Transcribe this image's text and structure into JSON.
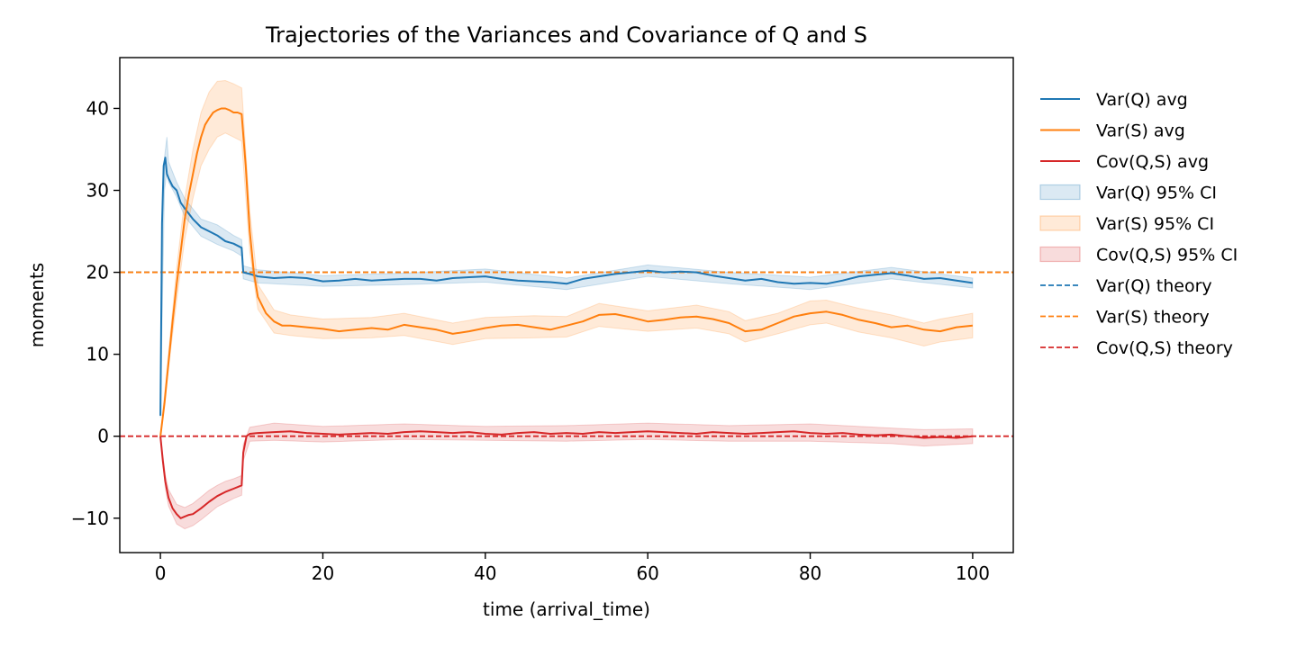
{
  "chart_data": {
    "type": "line",
    "title": "Trajectories of the Variances and Covariance of Q and S",
    "xlabel": "time (arrival_time)",
    "ylabel": "moments",
    "xlim": [
      -5,
      105
    ],
    "ylim": [
      -14.2,
      46.2
    ],
    "xticks": [
      0,
      20,
      40,
      60,
      80,
      100
    ],
    "yticks": [
      -10,
      0,
      10,
      20,
      30,
      40
    ],
    "legend_position": "outside-right",
    "series": [
      {
        "name": "Var(Q) avg",
        "color": "#1f77b4",
        "x": [
          0,
          0.2,
          0.4,
          0.6,
          0.8,
          1,
          1.5,
          2,
          2.5,
          3,
          4,
          5,
          6,
          7,
          8,
          9,
          10,
          10.2,
          11,
          12,
          14,
          16,
          18,
          20,
          22,
          24,
          26,
          28,
          30,
          32,
          34,
          36,
          38,
          40,
          42,
          44,
          46,
          48,
          50,
          52,
          54,
          56,
          58,
          60,
          62,
          64,
          66,
          68,
          70,
          72,
          74,
          76,
          78,
          80,
          82,
          84,
          86,
          88,
          90,
          92,
          94,
          96,
          98,
          100
        ],
        "y": [
          2.5,
          26,
          33,
          34,
          32,
          31.5,
          30.5,
          30,
          28.5,
          27.8,
          26.5,
          25.5,
          25,
          24.5,
          23.8,
          23.5,
          23,
          20,
          19.8,
          19.5,
          19.3,
          19.4,
          19.3,
          18.9,
          19,
          19.2,
          19,
          19.1,
          19.2,
          19.2,
          19,
          19.3,
          19.4,
          19.5,
          19.2,
          19,
          18.9,
          18.8,
          18.6,
          19.2,
          19.5,
          19.8,
          20,
          20.2,
          20,
          20.1,
          20,
          19.6,
          19.3,
          19,
          19.2,
          18.8,
          18.6,
          18.7,
          18.6,
          19,
          19.5,
          19.7,
          19.9,
          19.6,
          19.2,
          19.3,
          19,
          18.7
        ]
      },
      {
        "name": "Var(S) avg",
        "color": "#ff7f0e",
        "x": [
          0,
          0.5,
          1,
          1.5,
          2,
          2.5,
          3,
          3.5,
          4,
          4.5,
          5,
          5.5,
          6,
          6.5,
          7,
          7.5,
          8,
          8.5,
          9,
          9.5,
          10,
          10.5,
          11,
          11.5,
          12,
          13,
          14,
          15,
          16,
          18,
          20,
          22,
          24,
          26,
          28,
          30,
          32,
          34,
          36,
          38,
          40,
          42,
          44,
          46,
          48,
          50,
          52,
          54,
          56,
          58,
          60,
          62,
          64,
          66,
          68,
          70,
          72,
          74,
          76,
          78,
          80,
          82,
          84,
          86,
          88,
          90,
          92,
          94,
          96,
          98,
          100
        ],
        "y": [
          0,
          4,
          9,
          14,
          18.5,
          22.5,
          26.5,
          29.5,
          32,
          34.5,
          36.5,
          38,
          38.8,
          39.5,
          39.8,
          40,
          40,
          39.8,
          39.5,
          39.5,
          39.3,
          33,
          25,
          20,
          17,
          15,
          14,
          13.5,
          13.5,
          13.3,
          13.1,
          12.8,
          13,
          13.2,
          13,
          13.6,
          13.3,
          13,
          12.5,
          12.8,
          13.2,
          13.5,
          13.6,
          13.3,
          13,
          13.5,
          14,
          14.8,
          14.9,
          14.5,
          14,
          14.2,
          14.5,
          14.6,
          14.3,
          13.8,
          12.8,
          13,
          13.8,
          14.6,
          15,
          15.2,
          14.8,
          14.2,
          13.8,
          13.3,
          13.5,
          13,
          12.8,
          13.3,
          13.5
        ]
      },
      {
        "name": "Cov(Q,S) avg",
        "color": "#d62728",
        "x": [
          0,
          0.3,
          0.6,
          1,
          1.5,
          2,
          2.5,
          3,
          3.5,
          4,
          5,
          6,
          7,
          8,
          9,
          10,
          10.2,
          10.6,
          11,
          12,
          14,
          16,
          18,
          20,
          22,
          24,
          26,
          28,
          30,
          32,
          34,
          36,
          38,
          40,
          42,
          44,
          46,
          48,
          50,
          52,
          54,
          56,
          58,
          60,
          62,
          64,
          66,
          68,
          70,
          72,
          74,
          76,
          78,
          80,
          82,
          84,
          86,
          88,
          90,
          92,
          94,
          96,
          98,
          100
        ],
        "y": [
          0,
          -3,
          -5.5,
          -7.5,
          -8.8,
          -9.5,
          -10,
          -9.8,
          -9.6,
          -9.5,
          -8.8,
          -8,
          -7.3,
          -6.8,
          -6.4,
          -6,
          -2,
          0,
          0.3,
          0.4,
          0.5,
          0.6,
          0.4,
          0.3,
          0.2,
          0.3,
          0.4,
          0.3,
          0.5,
          0.6,
          0.5,
          0.4,
          0.5,
          0.3,
          0.2,
          0.4,
          0.5,
          0.3,
          0.4,
          0.3,
          0.5,
          0.4,
          0.5,
          0.6,
          0.5,
          0.4,
          0.3,
          0.5,
          0.4,
          0.3,
          0.4,
          0.5,
          0.6,
          0.4,
          0.3,
          0.4,
          0.2,
          0.1,
          0.2,
          0,
          -0.2,
          -0.1,
          -0.2,
          0
        ]
      }
    ],
    "confidence_bands": [
      {
        "name": "Var(Q) 95% CI",
        "color": "#1f77b4",
        "x": [
          0,
          0.5,
          0.8,
          1,
          2,
          3,
          5,
          7,
          9,
          10,
          10.2,
          12,
          20,
          30,
          40,
          50,
          60,
          70,
          80,
          90,
          100
        ],
        "lower": [
          2.3,
          30,
          32.3,
          31,
          29.2,
          26.8,
          24.4,
          23.4,
          22.6,
          22,
          19.2,
          18.7,
          18.3,
          18.5,
          18.8,
          17.9,
          19.5,
          18.6,
          17.9,
          19.2,
          18.1
        ],
        "upper": [
          2.7,
          34,
          36.5,
          33.5,
          31,
          29,
          26.5,
          25.8,
          24.5,
          24,
          20.8,
          20.3,
          19.6,
          19.9,
          20.4,
          19.3,
          20.9,
          20,
          19.4,
          20.6,
          19.3
        ]
      },
      {
        "name": "Var(S) 95% CI",
        "color": "#ff7f0e",
        "x": [
          0,
          2,
          3,
          4,
          5,
          6,
          7,
          8,
          9,
          10,
          11,
          12,
          14,
          16,
          20,
          26,
          30,
          36,
          40,
          46,
          50,
          54,
          60,
          66,
          70,
          72,
          76,
          80,
          82,
          86,
          90,
          94,
          96,
          100
        ],
        "lower": [
          0,
          16.5,
          24,
          29,
          33,
          35,
          36.5,
          37,
          36.5,
          36,
          22.5,
          15.5,
          12.6,
          12.3,
          11.9,
          12,
          12.3,
          11.2,
          11.9,
          12,
          12.1,
          13.4,
          12.8,
          13.2,
          12.5,
          11.5,
          12.5,
          13.6,
          13.8,
          12.7,
          12,
          11,
          11.5,
          12
        ],
        "upper": [
          0,
          20.5,
          29,
          35,
          39.5,
          42,
          43.3,
          43.4,
          43,
          42.5,
          27.5,
          18.5,
          15.4,
          14.8,
          14.3,
          14.5,
          15,
          13.8,
          14.5,
          14.7,
          14.6,
          16.2,
          15.3,
          16,
          15.2,
          14.1,
          15,
          16.5,
          16.6,
          15.6,
          14.8,
          13.8,
          14.3,
          15
        ]
      },
      {
        "name": "Cov(Q,S) 95% CI",
        "color": "#d62728",
        "x": [
          0,
          0.6,
          1,
          2,
          3,
          4,
          5,
          6,
          7,
          8,
          9,
          10,
          10.2,
          11,
          14,
          20,
          30,
          40,
          50,
          60,
          70,
          80,
          90,
          94,
          100
        ],
        "lower": [
          0,
          -6.3,
          -8.5,
          -10.7,
          -11.3,
          -10.9,
          -10.2,
          -9.4,
          -8.6,
          -8.1,
          -7.6,
          -7.2,
          -3,
          -0.6,
          -0.5,
          -0.7,
          -0.4,
          -0.5,
          -0.6,
          -0.4,
          -0.6,
          -0.6,
          -0.9,
          -1.2,
          -0.9
        ],
        "upper": [
          0,
          -4.7,
          -6.5,
          -8.3,
          -8.7,
          -8.2,
          -7.4,
          -6.6,
          -6,
          -5.5,
          -5.2,
          -4.8,
          -1,
          1.1,
          1.6,
          1.2,
          1.5,
          1.2,
          1.3,
          1.6,
          1.3,
          1.5,
          1,
          0.8,
          0.9
        ]
      }
    ],
    "reference_lines": [
      {
        "name": "Var(Q) theory",
        "y": 20,
        "color": "#1f77b4"
      },
      {
        "name": "Var(S) theory",
        "y": 20,
        "color": "#ff7f0e"
      },
      {
        "name": "Cov(Q,S) theory",
        "y": 0,
        "color": "#d62728"
      }
    ],
    "legend": [
      {
        "label": "Var(Q) avg",
        "kind": "line",
        "color": "#1f77b4"
      },
      {
        "label": "Var(S) avg",
        "kind": "line",
        "color": "#ff7f0e"
      },
      {
        "label": "Cov(Q,S) avg",
        "kind": "line",
        "color": "#d62728"
      },
      {
        "label": "Var(Q) 95% CI",
        "kind": "patch",
        "color": "#1f77b4"
      },
      {
        "label": "Var(S) 95% CI",
        "kind": "patch",
        "color": "#ff7f0e"
      },
      {
        "label": "Cov(Q,S) 95% CI",
        "kind": "patch",
        "color": "#d62728"
      },
      {
        "label": "Var(Q) theory",
        "kind": "dashed",
        "color": "#1f77b4"
      },
      {
        "label": "Var(S) theory",
        "kind": "dashed",
        "color": "#ff7f0e"
      },
      {
        "label": "Cov(Q,S) theory",
        "kind": "dashed",
        "color": "#d62728"
      }
    ]
  }
}
